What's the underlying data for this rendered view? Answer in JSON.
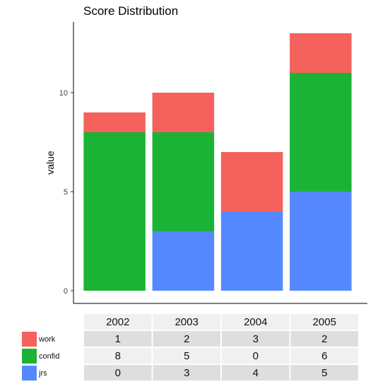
{
  "chart_data": {
    "type": "bar",
    "stacked": true,
    "title": "Score Distribution",
    "xlabel": "",
    "ylabel": "value",
    "ylim": [
      0,
      13.6
    ],
    "yticks": [
      0,
      5,
      10
    ],
    "categories": [
      "2002",
      "2003",
      "2004",
      "2005"
    ],
    "series": [
      {
        "name": "jrs",
        "color": "#5588ff",
        "values": [
          0,
          3,
          4,
          5
        ]
      },
      {
        "name": "confid",
        "color": "#1ab336",
        "values": [
          8,
          5,
          0,
          6
        ]
      },
      {
        "name": "work",
        "color": "#f5615c",
        "values": [
          1,
          2,
          3,
          2
        ]
      }
    ],
    "legend_position": "bottom-left",
    "grid": false,
    "table": {
      "header": [
        "2002",
        "2003",
        "2004",
        "2005"
      ],
      "rows": [
        {
          "name": "work",
          "values": [
            "1",
            "2",
            "3",
            "2"
          ]
        },
        {
          "name": "confid",
          "values": [
            "8",
            "5",
            "0",
            "6"
          ]
        },
        {
          "name": "jrs",
          "values": [
            "0",
            "3",
            "4",
            "5"
          ]
        }
      ]
    }
  }
}
